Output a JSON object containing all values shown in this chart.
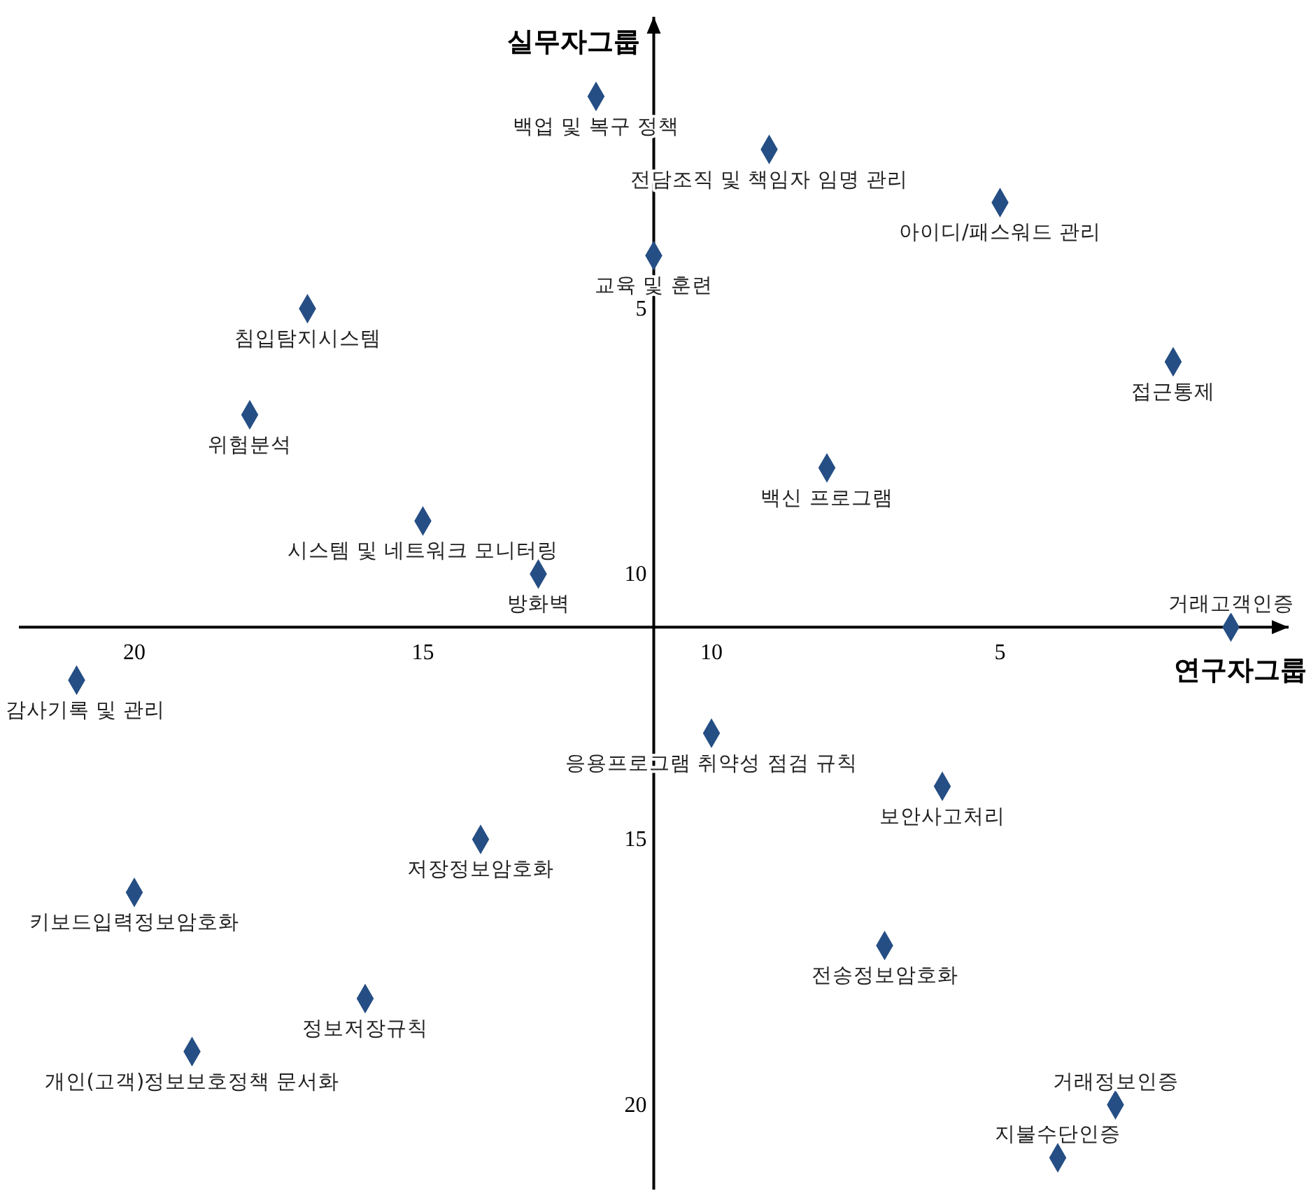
{
  "chart_data": {
    "type": "scatter",
    "xlabel": "연구자그룹",
    "ylabel": "실무자그룹",
    "xlim": [
      22,
      0
    ],
    "ylim": [
      21.6,
      -0.5
    ],
    "xticks": [
      20,
      15,
      10,
      5
    ],
    "yticks": [
      5,
      10,
      15,
      20
    ],
    "grid": false,
    "marker": "diamond",
    "series": [
      {
        "color": "#254e84",
        "x": [
          12,
          9,
          5,
          11,
          17,
          2,
          18,
          8,
          15,
          13,
          1,
          21,
          10,
          6,
          14,
          20,
          7,
          16,
          19,
          3,
          4
        ],
        "values": [
          1,
          2,
          3,
          4,
          5,
          6,
          7,
          8,
          9,
          10,
          11,
          12,
          13,
          14,
          15,
          16,
          17,
          18,
          19,
          20,
          21
        ]
      }
    ],
    "annotations": [
      {
        "text": "백업 및 복구 정책",
        "x": 12,
        "y": 1
      },
      {
        "text": "전담조직 및 책임자 임명 관리",
        "x": 9,
        "y": 2
      },
      {
        "text": "아이디/패스워드 관리",
        "x": 5,
        "y": 3
      },
      {
        "text": "교육 및 훈련",
        "x": 11,
        "y": 4
      },
      {
        "text": "침입탐지시스템",
        "x": 17,
        "y": 5
      },
      {
        "text": "접근통제",
        "x": 2,
        "y": 6
      },
      {
        "text": "위험분석",
        "x": 18,
        "y": 7
      },
      {
        "text": "백신 프로그램",
        "x": 8,
        "y": 8
      },
      {
        "text": "시스템 및 네트워크 모니터링",
        "x": 15,
        "y": 9
      },
      {
        "text": "방화벽",
        "x": 13,
        "y": 10
      },
      {
        "text": "거래고객인증",
        "x": 1,
        "y": 11
      },
      {
        "text": "감사기록 및 관리",
        "x": 21,
        "y": 12
      },
      {
        "text": "응용프로그램 취약성 점검 규칙",
        "x": 10,
        "y": 13
      },
      {
        "text": "보안사고처리",
        "x": 6,
        "y": 14
      },
      {
        "text": "저장정보암호화",
        "x": 14,
        "y": 15
      },
      {
        "text": "키보드입력정보암호화",
        "x": 20,
        "y": 16
      },
      {
        "text": "전송정보암호화",
        "x": 7,
        "y": 17
      },
      {
        "text": "정보저장규칙",
        "x": 16,
        "y": 18
      },
      {
        "text": "개인(고객)정보보호정책 문서화",
        "x": 19,
        "y": 19
      },
      {
        "text": "거래정보인증",
        "x": 3,
        "y": 20
      },
      {
        "text": "지불수단인증",
        "x": 4,
        "y": 21
      }
    ]
  }
}
